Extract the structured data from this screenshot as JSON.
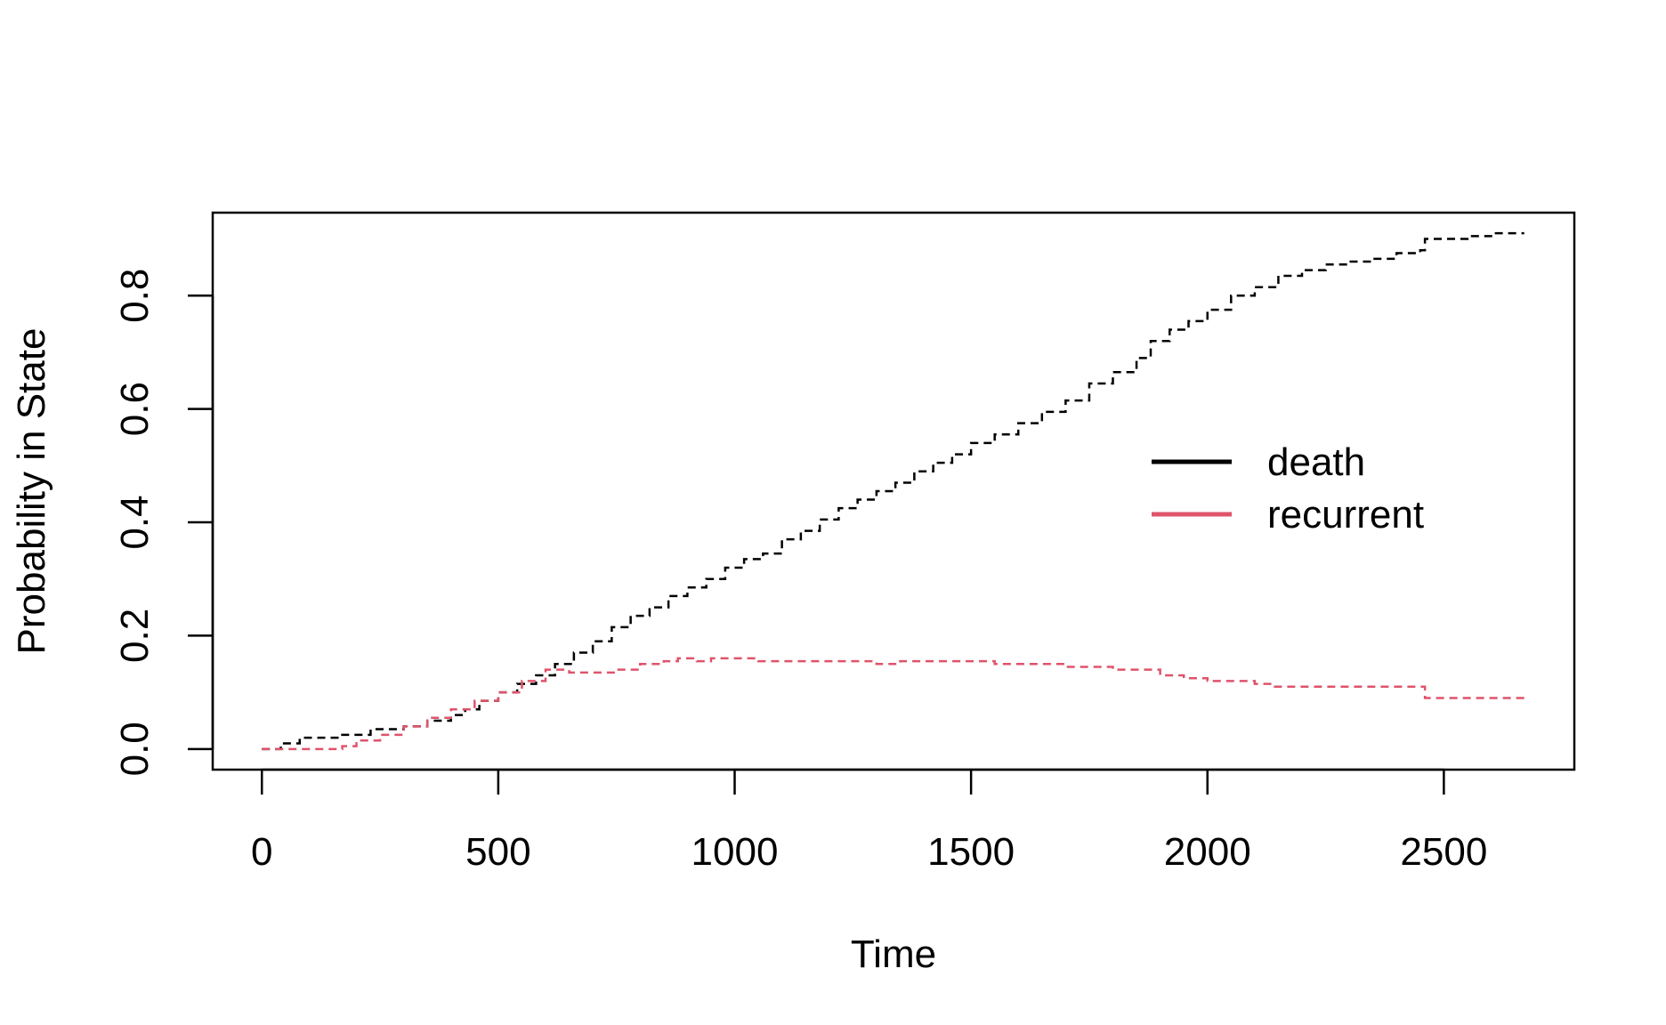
{
  "chart_data": {
    "type": "line",
    "title": "",
    "xlabel": "Time",
    "ylabel": "Probability in State",
    "xlim": [
      -104,
      2776
    ],
    "ylim": [
      -0.0364,
      0.9464
    ],
    "x_ticks": [
      0,
      500,
      1000,
      1500,
      2000,
      2500
    ],
    "x_tick_labels": [
      "0",
      "500",
      "1000",
      "1500",
      "2000",
      "2500"
    ],
    "y_ticks": [
      0.0,
      0.2,
      0.4,
      0.6,
      0.8
    ],
    "y_tick_labels": [
      "0.0",
      "0.2",
      "0.4",
      "0.6",
      "0.8"
    ],
    "grid": false,
    "legend_position": "right",
    "line_style": "dashed step",
    "series": [
      {
        "name": "death",
        "color": "#000000",
        "x": [
          0,
          40,
          80,
          170,
          230,
          300,
          350,
          400,
          430,
          460,
          500,
          540,
          580,
          620,
          660,
          700,
          740,
          780,
          820,
          860,
          900,
          940,
          980,
          1020,
          1060,
          1100,
          1140,
          1180,
          1220,
          1260,
          1300,
          1340,
          1380,
          1420,
          1460,
          1500,
          1550,
          1600,
          1650,
          1700,
          1750,
          1800,
          1850,
          1880,
          1920,
          1960,
          2000,
          2050,
          2100,
          2150,
          2200,
          2250,
          2300,
          2350,
          2400,
          2450,
          2460,
          2500,
          2550,
          2600,
          2670
        ],
        "y": [
          0.0,
          0.01,
          0.02,
          0.025,
          0.035,
          0.04,
          0.05,
          0.06,
          0.07,
          0.085,
          0.1,
          0.115,
          0.13,
          0.15,
          0.17,
          0.19,
          0.215,
          0.235,
          0.25,
          0.27,
          0.285,
          0.3,
          0.32,
          0.335,
          0.345,
          0.37,
          0.385,
          0.405,
          0.425,
          0.44,
          0.455,
          0.47,
          0.49,
          0.505,
          0.52,
          0.54,
          0.555,
          0.575,
          0.595,
          0.615,
          0.645,
          0.665,
          0.69,
          0.72,
          0.74,
          0.755,
          0.775,
          0.8,
          0.815,
          0.835,
          0.845,
          0.855,
          0.86,
          0.865,
          0.875,
          0.88,
          0.9,
          0.9,
          0.905,
          0.91,
          0.91
        ]
      },
      {
        "name": "recurrent",
        "color": "#DF536B",
        "x": [
          0,
          80,
          170,
          200,
          250,
          300,
          350,
          400,
          450,
          500,
          550,
          600,
          650,
          700,
          750,
          800,
          850,
          880,
          920,
          950,
          1000,
          1050,
          1100,
          1150,
          1200,
          1250,
          1300,
          1350,
          1400,
          1450,
          1500,
          1550,
          1600,
          1650,
          1700,
          1750,
          1800,
          1850,
          1900,
          1950,
          2000,
          2050,
          2100,
          2140,
          2200,
          2300,
          2400,
          2450,
          2460,
          2550,
          2670
        ],
        "y": [
          0.0,
          0.0,
          0.005,
          0.015,
          0.025,
          0.04,
          0.055,
          0.07,
          0.085,
          0.1,
          0.12,
          0.14,
          0.135,
          0.135,
          0.14,
          0.15,
          0.155,
          0.16,
          0.155,
          0.16,
          0.16,
          0.155,
          0.155,
          0.155,
          0.155,
          0.155,
          0.15,
          0.155,
          0.155,
          0.155,
          0.155,
          0.15,
          0.15,
          0.15,
          0.145,
          0.145,
          0.14,
          0.14,
          0.13,
          0.125,
          0.12,
          0.12,
          0.115,
          0.11,
          0.11,
          0.11,
          0.11,
          0.11,
          0.09,
          0.09,
          0.09
        ]
      }
    ]
  }
}
